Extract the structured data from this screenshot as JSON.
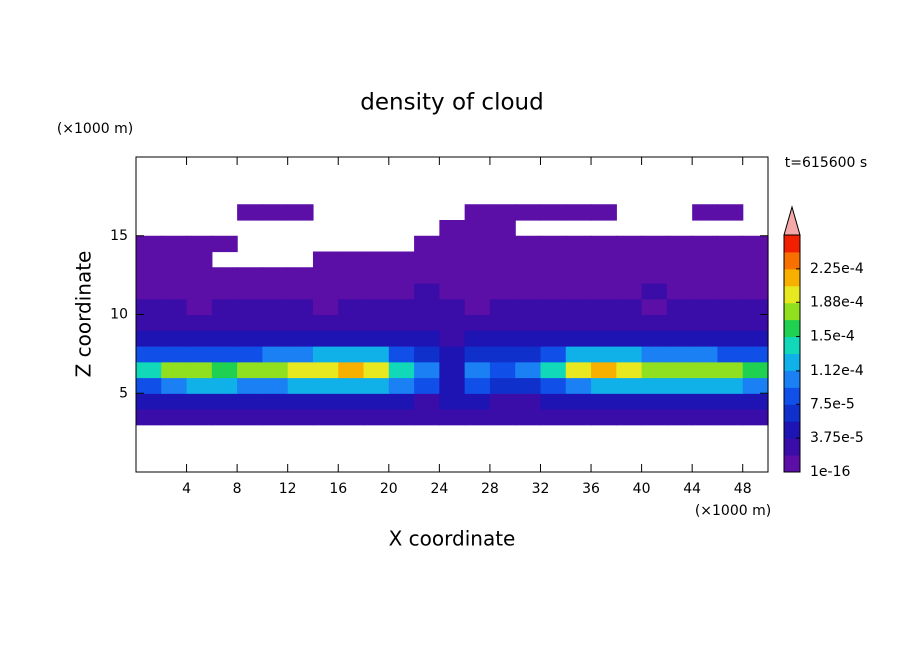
{
  "chart_data": {
    "type": "contour",
    "title": "density of cloud",
    "x_label": "X coordinate",
    "y_label": "Z coordinate",
    "x_unit": "(×1000 m)",
    "y_unit": "(×1000 m)",
    "time_label": "t=615600 s",
    "xlim": [
      0,
      50
    ],
    "ylim": [
      0,
      20
    ],
    "xticks": [
      4,
      8,
      12,
      16,
      20,
      24,
      28,
      32,
      36,
      40,
      44,
      48
    ],
    "yticks": [
      5,
      10,
      15
    ],
    "x": [
      1,
      3,
      5,
      7,
      9,
      11,
      13,
      15,
      17,
      19,
      21,
      23,
      25,
      27,
      29,
      31,
      33,
      35,
      37,
      39,
      41,
      43,
      45,
      47,
      49
    ],
    "y": [
      3.5,
      4.5,
      5.5,
      6.5,
      7.5,
      8.5,
      9.5,
      10.5,
      11.5,
      12.5,
      13.5,
      14.5,
      15.5,
      16.5
    ],
    "z": [
      [
        2.5e-05,
        2.5e-05,
        2.5e-05,
        2.5e-05,
        2.5e-05,
        2.5e-05,
        2.5e-05,
        2.5e-05,
        2.5e-05,
        2.5e-05,
        2.5e-05,
        2.5e-05,
        2.5e-05,
        2.5e-05,
        2.5e-05,
        2.5e-05,
        2.5e-05,
        2.5e-05,
        2.5e-05,
        2.5e-05,
        2.5e-05,
        2.5e-05,
        2.5e-05,
        2.5e-05,
        2.5e-05
      ],
      [
        5e-05,
        5e-05,
        5e-05,
        5e-05,
        5e-05,
        5e-05,
        5e-05,
        5e-05,
        5e-05,
        5e-05,
        5e-05,
        3e-05,
        5e-05,
        5e-05,
        3e-05,
        3e-05,
        5e-05,
        5e-05,
        5e-05,
        5e-05,
        5e-05,
        5e-05,
        5e-05,
        5e-05,
        5e-05
      ],
      [
        9e-05,
        0.00011,
        0.00012,
        0.00012,
        0.00011,
        0.0001,
        0.00012,
        0.00013,
        0.00013,
        0.00012,
        0.0001,
        8e-05,
        4e-05,
        8e-05,
        7e-05,
        6e-05,
        8e-05,
        0.0001,
        0.00012,
        0.00013,
        0.00012,
        0.00012,
        0.00013,
        0.00012,
        0.00011
      ],
      [
        0.00015,
        0.00017,
        0.00018,
        0.00016,
        0.00017,
        0.00018,
        0.00019,
        0.0002,
        0.00021,
        0.00019,
        0.00015,
        0.00011,
        5e-05,
        0.0001,
        9e-05,
        0.0001,
        0.00015,
        0.00019,
        0.00021,
        0.0002,
        0.00018,
        0.00017,
        0.00018,
        0.00018,
        0.00016
      ],
      [
        8e-05,
        9e-05,
        9e-05,
        8e-05,
        9e-05,
        0.0001,
        0.00011,
        0.00013,
        0.00013,
        0.00012,
        8e-05,
        6e-05,
        4e-05,
        6e-05,
        6e-05,
        7e-05,
        9e-05,
        0.00012,
        0.00013,
        0.00012,
        0.0001,
        0.0001,
        0.0001,
        9e-05,
        8e-05
      ],
      [
        4e-05,
        4e-05,
        4.5e-05,
        4e-05,
        4e-05,
        4.5e-05,
        5e-05,
        5e-05,
        5e-05,
        4.5e-05,
        4e-05,
        4e-05,
        3e-05,
        4e-05,
        4e-05,
        4e-05,
        4.5e-05,
        5e-05,
        5e-05,
        5e-05,
        4.5e-05,
        4e-05,
        4.5e-05,
        4e-05,
        4e-05
      ],
      [
        3e-05,
        2.5e-05,
        3e-05,
        3e-05,
        2.5e-05,
        3e-05,
        3e-05,
        3e-05,
        3e-05,
        3e-05,
        2.5e-05,
        3e-05,
        3e-05,
        3e-05,
        3e-05,
        3e-05,
        3e-05,
        3e-05,
        3e-05,
        2.5e-05,
        3e-05,
        3e-05,
        3e-05,
        2.5e-05,
        3e-05
      ],
      [
        2e-05,
        2e-05,
        1.5e-05,
        2e-05,
        2e-05,
        2e-05,
        2e-05,
        1.5e-05,
        2e-05,
        2e-05,
        2e-05,
        2e-05,
        2e-05,
        1.5e-05,
        2e-05,
        2e-05,
        2e-05,
        2e-05,
        2e-05,
        2e-05,
        1.5e-05,
        2e-05,
        2e-05,
        2e-05,
        2e-05
      ],
      [
        1.2e-05,
        1.2e-05,
        1.2e-05,
        1e-05,
        1.2e-05,
        1.2e-05,
        1.2e-05,
        1.2e-05,
        1e-05,
        1.2e-05,
        1.2e-05,
        2e-05,
        1.2e-05,
        1.2e-05,
        1.2e-05,
        1.2e-05,
        1e-05,
        1.2e-05,
        1.2e-05,
        1.2e-05,
        2e-05,
        1.2e-05,
        1.2e-05,
        1.2e-05,
        1.2e-05
      ],
      [
        8e-06,
        8e-06,
        8e-06,
        5e-06,
        5e-06,
        5e-06,
        8e-06,
        8e-06,
        8e-06,
        8e-06,
        8e-06,
        8e-06,
        8e-06,
        8e-06,
        8e-06,
        8e-06,
        8e-06,
        8e-06,
        8e-06,
        8e-06,
        8e-06,
        8e-06,
        8e-06,
        8e-06,
        8e-06
      ],
      [
        5e-06,
        5e-06,
        5e-06,
        null,
        null,
        null,
        null,
        4e-06,
        4e-06,
        4e-06,
        4e-06,
        4e-06,
        4e-06,
        4e-06,
        4e-06,
        4e-06,
        4e-06,
        4e-06,
        4e-06,
        4e-06,
        4e-06,
        4e-06,
        4e-06,
        4e-06,
        4e-06
      ],
      [
        3e-06,
        3e-06,
        3e-06,
        3e-06,
        null,
        null,
        null,
        null,
        null,
        null,
        null,
        2e-06,
        3e-06,
        3e-06,
        3e-06,
        2e-06,
        2e-06,
        3e-06,
        3e-06,
        3e-06,
        3e-06,
        3e-06,
        3e-06,
        3e-06,
        3e-06
      ],
      [
        null,
        null,
        null,
        null,
        null,
        null,
        null,
        null,
        null,
        null,
        null,
        null,
        2e-06,
        2e-06,
        2e-06,
        null,
        null,
        null,
        null,
        null,
        null,
        null,
        null,
        null,
        null
      ],
      [
        null,
        null,
        null,
        null,
        2e-06,
        2e-06,
        2e-06,
        null,
        null,
        null,
        null,
        null,
        null,
        2e-06,
        2e-06,
        2e-06,
        2e-06,
        2e-06,
        2e-06,
        null,
        null,
        null,
        2e-06,
        2e-06,
        null
      ]
    ],
    "colorbar": {
      "lim": [
        1e-16,
        0.0002625
      ],
      "colors": [
        "#5b0fa6",
        "#3a0ca8",
        "#1e14b4",
        "#1030cc",
        "#1050e8",
        "#1a80f4",
        "#10b0e8",
        "#10d8b8",
        "#20d050",
        "#90e020",
        "#e8e820",
        "#f8b000",
        "#f87000",
        "#f02000"
      ],
      "extend_color": "#f4a8a8",
      "ticks": [
        1e-16,
        {
          "value": 3.75e-05,
          "label": "3.75e-5"
        },
        {
          "value": 7.5e-05,
          "label": "7.5e-5"
        },
        {
          "value": 0.000112,
          "label": "1.12e-4"
        },
        {
          "value": 0.00015,
          "label": "1.5e-4"
        },
        {
          "value": 0.000188,
          "label": "1.88e-4"
        },
        {
          "value": 0.000225,
          "label": "2.25e-4"
        }
      ]
    }
  }
}
